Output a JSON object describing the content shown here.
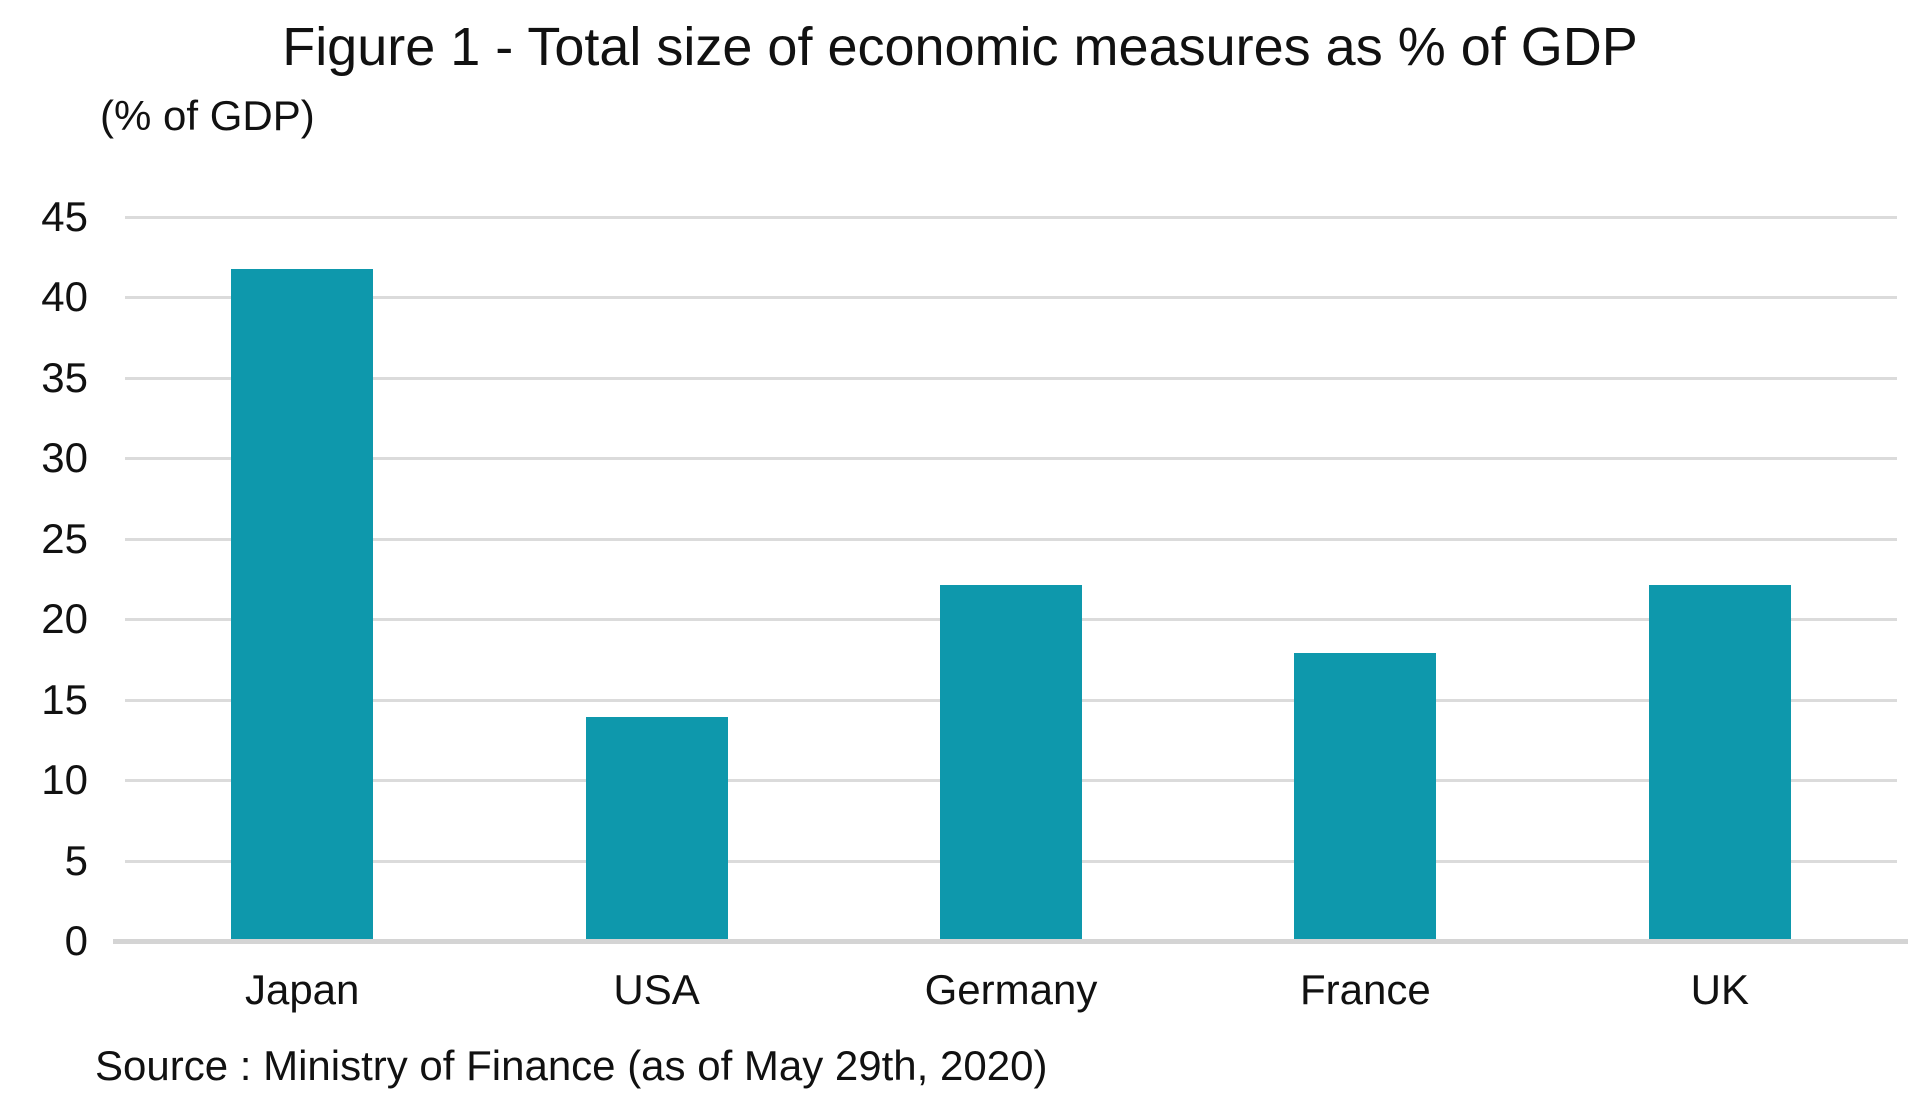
{
  "chart_data": {
    "type": "bar",
    "title": "Figure 1 - Total size of economic measures as % of GDP",
    "ylabel": "(% of GDP)",
    "source": "Source : Ministry of Finance (as of May 29th, 2020)",
    "categories": [
      "Japan",
      "USA",
      "Germany",
      "France",
      "UK"
    ],
    "values": [
      41.8,
      13.9,
      22.1,
      17.9,
      22.1
    ],
    "yticks": [
      "0",
      "5",
      "10",
      "15",
      "20",
      "25",
      "30",
      "35",
      "40",
      "45"
    ],
    "ytick_values": [
      0,
      5,
      10,
      15,
      20,
      25,
      30,
      35,
      40,
      45
    ],
    "ylim": [
      0,
      45
    ],
    "grid": "horizontal",
    "legend": "none",
    "bar_color": "#0e98ac",
    "gridline_color": "#dbdbdb",
    "axis_line_color": "#d4d4d4",
    "text_color": "#111111"
  }
}
